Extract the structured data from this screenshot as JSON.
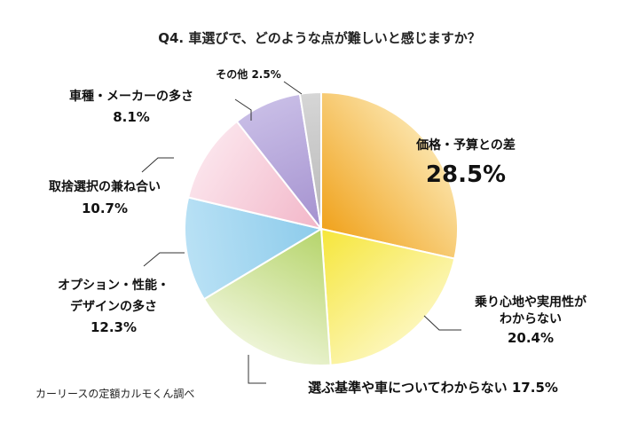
{
  "chart_data": {
    "type": "pie",
    "title": "Q4. 車選びで、どのような点が難しいと感じますか？",
    "source": "カーリースの定額カルモくん調べ",
    "slices": [
      {
        "label": "価格・予算との差",
        "value": 28.5,
        "value_text": "28.5%",
        "color_from": "#F0A21C",
        "color_to": "#FBE2A6"
      },
      {
        "label": "乗り心地や実用性がわからない",
        "label_lines": [
          "乗り心地や実用性が",
          "わからない"
        ],
        "value": 20.4,
        "value_text": "20.4%",
        "color_from": "#F6E63A",
        "color_to": "#FCF6B8"
      },
      {
        "label": "選ぶ基準や車についてわからない",
        "value": 17.5,
        "value_text": "17.5%",
        "color_from": "#B5D46A",
        "color_to": "#EDF4D6"
      },
      {
        "label": "オプション・性能・デザインの多さ",
        "label_lines": [
          "オプション・性能・",
          "デザインの多さ"
        ],
        "value": 12.3,
        "value_text": "12.3%",
        "color_from": "#8CCBEB",
        "color_to": "#B9E1F5"
      },
      {
        "label": "取捨選択の兼ね合い",
        "value": 10.7,
        "value_text": "10.7%",
        "color_from": "#F2B6C8",
        "color_to": "#FBE3EB"
      },
      {
        "label": "車種・メーカーの多さ",
        "value": 8.1,
        "value_text": "8.1%",
        "color_from": "#A491CF",
        "color_to": "#C8BDE6"
      },
      {
        "label": "その他",
        "value": 2.5,
        "value_text": "2.5%",
        "color_from": "#B8B8B8",
        "color_to": "#D6D6D6"
      }
    ]
  }
}
